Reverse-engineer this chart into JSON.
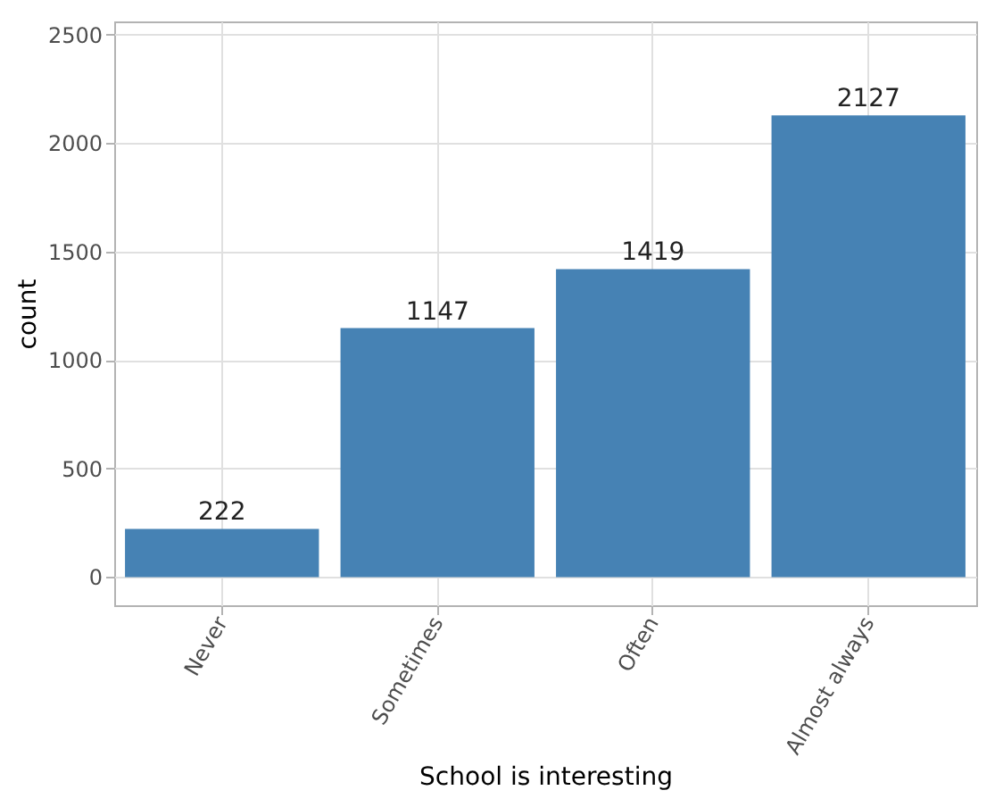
{
  "chart_data": {
    "type": "bar",
    "xlabel": "School is interesting",
    "ylabel": "count",
    "categories": [
      "Never",
      "Sometimes",
      "Often",
      "Almost always"
    ],
    "values": [
      222,
      1147,
      1419,
      2127
    ],
    "color": "#4682b4",
    "ylim": [
      -130,
      2560
    ],
    "yticks": [
      0,
      500,
      1000,
      1500,
      2000,
      2500
    ],
    "grid": true,
    "data_labels": true
  }
}
